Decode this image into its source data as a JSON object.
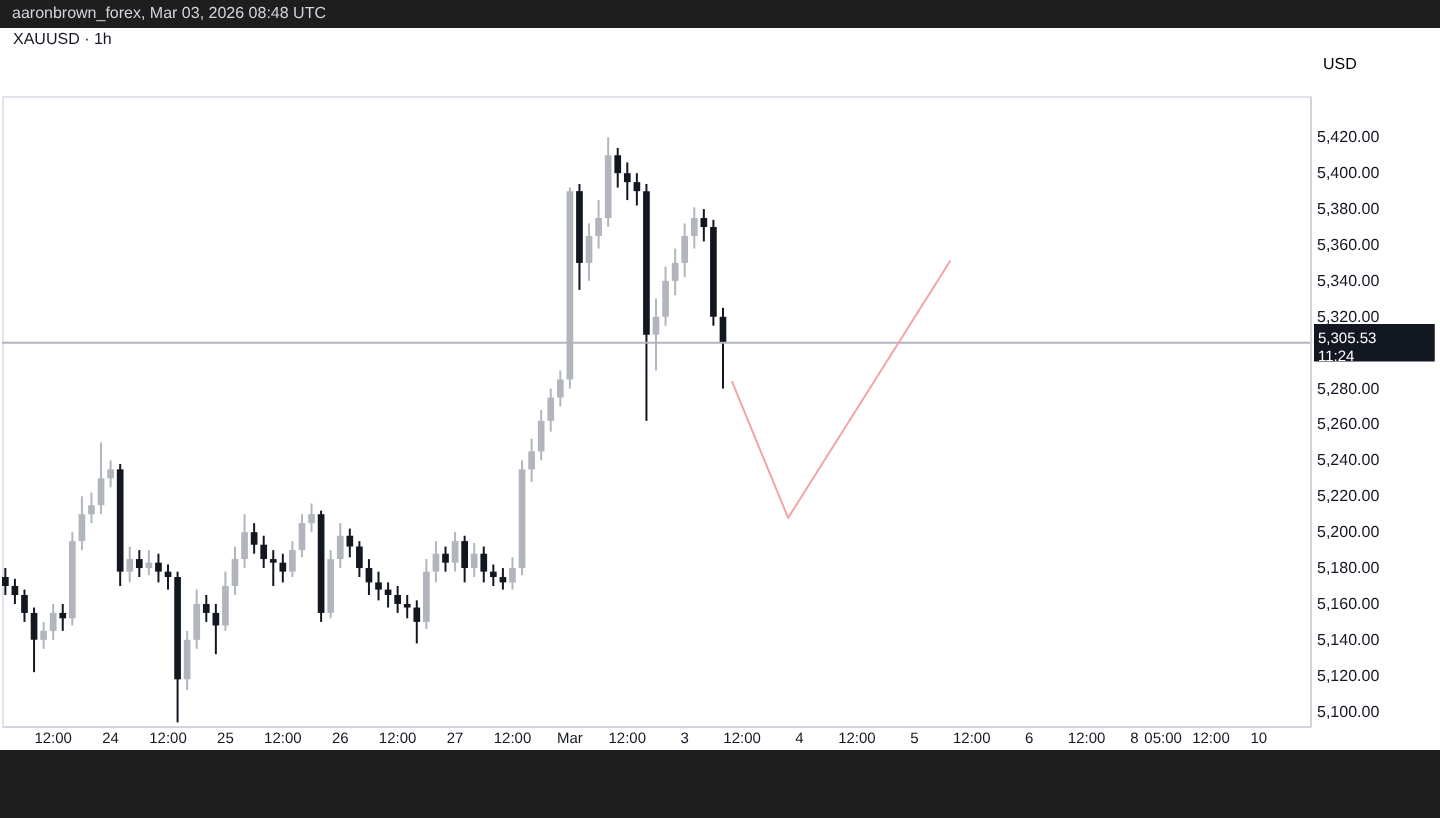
{
  "chart_data": {
    "type": "candlestick",
    "title": "XAUUSD · 1h",
    "subtitle": "aaronbrown_forex, Mar 03, 2026 08:48 UTC",
    "ylabel": "USD",
    "categories": [
      null,
      null,
      null,
      null,
      null,
      "12:00",
      null,
      null,
      null,
      null,
      null,
      "24",
      null,
      null,
      null,
      null,
      null,
      "12:00",
      null,
      null,
      null,
      null,
      null,
      "25",
      null,
      null,
      null,
      null,
      null,
      "12:00",
      null,
      null,
      null,
      null,
      null,
      "26",
      null,
      null,
      null,
      null,
      null,
      "12:00",
      null,
      null,
      null,
      null,
      null,
      "27",
      null,
      null,
      null,
      null,
      null,
      "12:00",
      null,
      null,
      null,
      null,
      null,
      "Mar",
      null,
      null,
      null,
      null,
      null,
      "12:00",
      null,
      null,
      null,
      null,
      null,
      "3",
      null,
      null,
      null,
      null,
      null,
      "12:00",
      null,
      null,
      null,
      null,
      null,
      "4",
      null,
      null,
      null,
      null,
      null,
      "12:00",
      null,
      null,
      null,
      null,
      null,
      "5",
      null,
      null,
      null,
      null,
      null,
      "12:00",
      null,
      null,
      null,
      null,
      null,
      "6",
      null,
      null,
      null,
      null,
      null,
      "12:00",
      null,
      null,
      null,
      null,
      "8",
      null,
      null,
      "05:00",
      null,
      null,
      null,
      null,
      "12:00",
      null,
      null,
      null,
      null,
      "10",
      null,
      null,
      null,
      null,
      null
    ],
    "ohlc": [
      [
        5175,
        5180,
        5165,
        5170
      ],
      [
        5170,
        5174,
        5160,
        5165
      ],
      [
        5165,
        5168,
        5150,
        5155
      ],
      [
        5155,
        5158,
        5122,
        5140
      ],
      [
        5140,
        5150,
        5135,
        5145
      ],
      [
        5145,
        5160,
        5140,
        5155
      ],
      [
        5155,
        5160,
        5145,
        5152
      ],
      [
        5152,
        5200,
        5148,
        5195
      ],
      [
        5195,
        5220,
        5190,
        5210
      ],
      [
        5210,
        5222,
        5205,
        5215
      ],
      [
        5215,
        5250,
        5210,
        5230
      ],
      [
        5230,
        5240,
        5225,
        5235
      ],
      [
        5235,
        5238,
        5170,
        5178
      ],
      [
        5178,
        5192,
        5172,
        5185
      ],
      [
        5185,
        5190,
        5175,
        5180
      ],
      [
        5180,
        5190,
        5176,
        5183
      ],
      [
        5183,
        5188,
        5172,
        5178
      ],
      [
        5178,
        5182,
        5168,
        5175
      ],
      [
        5175,
        5178,
        5094,
        5118
      ],
      [
        5118,
        5145,
        5112,
        5140
      ],
      [
        5140,
        5168,
        5135,
        5160
      ],
      [
        5160,
        5165,
        5150,
        5155
      ],
      [
        5155,
        5160,
        5132,
        5148
      ],
      [
        5148,
        5178,
        5145,
        5170
      ],
      [
        5170,
        5192,
        5165,
        5185
      ],
      [
        5185,
        5210,
        5180,
        5200
      ],
      [
        5200,
        5205,
        5188,
        5193
      ],
      [
        5193,
        5198,
        5180,
        5185
      ],
      [
        5185,
        5190,
        5170,
        5183
      ],
      [
        5183,
        5188,
        5172,
        5178
      ],
      [
        5178,
        5195,
        5175,
        5190
      ],
      [
        5190,
        5210,
        5186,
        5205
      ],
      [
        5205,
        5216,
        5200,
        5210
      ],
      [
        5210,
        5212,
        5150,
        5155
      ],
      [
        5155,
        5190,
        5152,
        5185
      ],
      [
        5185,
        5205,
        5180,
        5198
      ],
      [
        5198,
        5202,
        5186,
        5192
      ],
      [
        5192,
        5195,
        5175,
        5180
      ],
      [
        5180,
        5185,
        5165,
        5172
      ],
      [
        5172,
        5178,
        5162,
        5168
      ],
      [
        5168,
        5172,
        5158,
        5165
      ],
      [
        5165,
        5170,
        5155,
        5160
      ],
      [
        5160,
        5165,
        5152,
        5158
      ],
      [
        5158,
        5162,
        5138,
        5150
      ],
      [
        5150,
        5185,
        5146,
        5178
      ],
      [
        5178,
        5195,
        5172,
        5188
      ],
      [
        5188,
        5192,
        5178,
        5183
      ],
      [
        5183,
        5200,
        5178,
        5195
      ],
      [
        5195,
        5198,
        5172,
        5180
      ],
      [
        5180,
        5194,
        5175,
        5188
      ],
      [
        5188,
        5192,
        5172,
        5178
      ],
      [
        5178,
        5182,
        5170,
        5175
      ],
      [
        5175,
        5180,
        5168,
        5172
      ],
      [
        5172,
        5186,
        5168,
        5180
      ],
      [
        5180,
        5240,
        5176,
        5235
      ],
      [
        5235,
        5252,
        5228,
        5245
      ],
      [
        5245,
        5268,
        5240,
        5262
      ],
      [
        5262,
        5280,
        5256,
        5275
      ],
      [
        5275,
        5290,
        5270,
        5285
      ],
      [
        5285,
        5392,
        5280,
        5390
      ],
      [
        5390,
        5394,
        5335,
        5350
      ],
      [
        5350,
        5372,
        5340,
        5365
      ],
      [
        5365,
        5385,
        5358,
        5375
      ],
      [
        5375,
        5420,
        5370,
        5410
      ],
      [
        5410,
        5414,
        5392,
        5400
      ],
      [
        5400,
        5406,
        5385,
        5395
      ],
      [
        5395,
        5400,
        5382,
        5390
      ],
      [
        5390,
        5394,
        5262,
        5310
      ],
      [
        5310,
        5330,
        5290,
        5320
      ],
      [
        5320,
        5348,
        5315,
        5340
      ],
      [
        5340,
        5358,
        5332,
        5350
      ],
      [
        5350,
        5372,
        5342,
        5365
      ],
      [
        5365,
        5381,
        5358,
        5375
      ],
      [
        5375,
        5380,
        5362,
        5370
      ],
      [
        5370,
        5374,
        5315,
        5320
      ],
      [
        5320,
        5325,
        5280,
        5305.53
      ],
      null,
      null,
      null,
      null,
      null,
      null,
      null,
      null,
      null,
      null,
      null,
      null,
      null,
      null,
      null,
      null,
      null,
      null,
      null,
      null,
      null,
      null,
      null,
      null,
      null,
      null,
      null,
      null,
      null,
      null,
      null,
      null,
      null,
      null,
      null,
      null,
      null,
      null,
      null,
      null,
      null,
      null,
      null,
      null,
      null,
      null,
      null,
      null,
      null,
      null,
      null,
      null,
      null,
      null,
      null,
      null,
      null,
      null,
      null,
      null,
      null
    ],
    "colors": [
      "#131722",
      "#131722",
      "#131722",
      "#131722",
      "#b2b5be",
      "#b2b5be",
      "#131722",
      "#b2b5be",
      "#b2b5be",
      "#b2b5be",
      "#b2b5be",
      "#b2b5be",
      "#131722",
      "#b2b5be",
      "#131722",
      "#b2b5be",
      "#131722",
      "#131722",
      "#131722",
      "#b2b5be",
      "#b2b5be",
      "#131722",
      "#131722",
      "#b2b5be",
      "#b2b5be",
      "#b2b5be",
      "#131722",
      "#131722",
      "#131722",
      "#131722",
      "#b2b5be",
      "#b2b5be",
      "#b2b5be",
      "#131722",
      "#b2b5be",
      "#b2b5be",
      "#131722",
      "#131722",
      "#131722",
      "#131722",
      "#131722",
      "#131722",
      "#131722",
      "#131722",
      "#b2b5be",
      "#b2b5be",
      "#131722",
      "#b2b5be",
      "#131722",
      "#b2b5be",
      "#131722",
      "#131722",
      "#131722",
      "#b2b5be",
      "#b2b5be",
      "#b2b5be",
      "#b2b5be",
      "#b2b5be",
      "#b2b5be",
      "#b2b5be",
      "#131722",
      "#b2b5be",
      "#b2b5be",
      "#b2b5be",
      "#131722",
      "#131722",
      "#131722",
      "#131722",
      "#b2b5be",
      "#b2b5be",
      "#b2b5be",
      "#b2b5be",
      "#b2b5be",
      "#131722",
      "#131722",
      "#131722",
      null,
      null,
      null,
      null,
      null,
      null,
      null,
      null,
      null,
      null,
      null,
      null,
      null,
      null,
      null,
      null,
      null,
      null,
      null,
      null,
      null,
      null,
      null,
      null,
      null,
      null,
      null,
      null,
      null,
      null,
      null,
      null,
      null,
      null,
      null,
      null,
      null,
      null,
      null,
      null,
      null,
      null,
      null,
      null,
      null,
      null,
      null,
      null,
      null,
      null,
      null,
      null,
      null,
      null,
      null,
      null,
      null,
      null,
      null,
      null,
      null
    ],
    "ref_lines": [
      {
        "axis": "y",
        "value": 5305.53,
        "label": "5,305.53",
        "color": "#b2b5be"
      }
    ],
    "annotations": [
      "11:24"
    ],
    "ylim": [
      5092,
      5443
    ],
    "yticks": [
      {
        "value": 5100,
        "label": "5,100.00"
      },
      {
        "value": 5120,
        "label": "5,120.00"
      },
      {
        "value": 5140,
        "label": "5,140.00"
      },
      {
        "value": 5160,
        "label": "5,160.00"
      },
      {
        "value": 5180,
        "label": "5,180.00"
      },
      {
        "value": 5200,
        "label": "5,200.00"
      },
      {
        "value": 5220,
        "label": "5,220.00"
      },
      {
        "value": 5240,
        "label": "5,240.00"
      },
      {
        "value": 5260,
        "label": "5,260.00"
      },
      {
        "value": 5280,
        "label": "5,280.00"
      },
      {
        "value": 5320,
        "label": "5,320.00"
      },
      {
        "value": 5340,
        "label": "5,340.00"
      },
      {
        "value": 5360,
        "label": "5,360.00"
      },
      {
        "value": 5380,
        "label": "5,380.00"
      },
      {
        "value": 5400,
        "label": "5,400.00"
      },
      {
        "value": 5420,
        "label": "5,420.00"
      }
    ],
    "grid": false
  }
}
